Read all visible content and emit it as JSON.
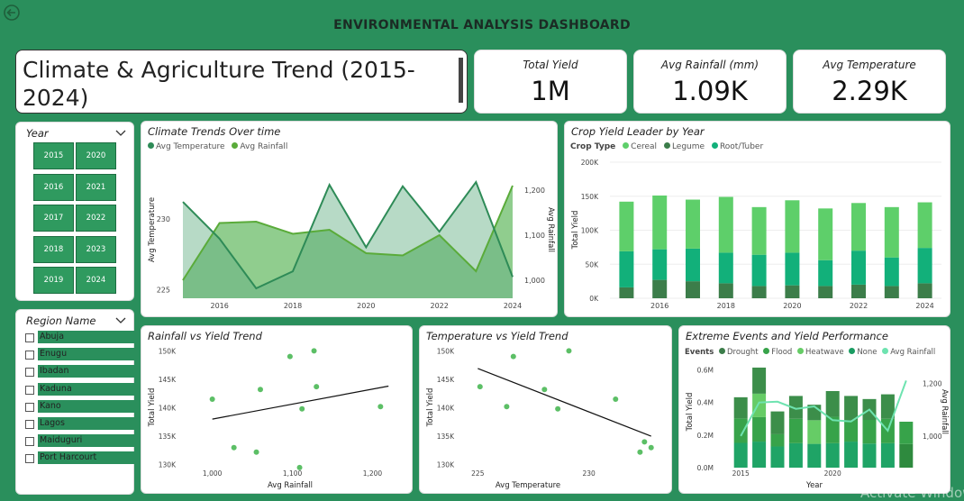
{
  "header": {
    "title": "ENVIRONMENTAL ANALYSIS DASHBOARD"
  },
  "report_title": "Climate & Agriculture Trend (2015-2024)",
  "kpis": [
    {
      "label": "Total Yield",
      "value": "1M"
    },
    {
      "label": "Avg Rainfall (mm)",
      "value": "1.09K"
    },
    {
      "label": "Avg Temperature",
      "value": "2.29K"
    }
  ],
  "year_slicer": {
    "label": "Year",
    "years": [
      "2015",
      "2020",
      "2016",
      "2021",
      "2017",
      "2022",
      "2018",
      "2023",
      "2019",
      "2024"
    ]
  },
  "region_slicer": {
    "label": "Region Name",
    "regions": [
      "Abuja",
      "Enugu",
      "Ibadan",
      "Kaduna",
      "Kano",
      "Lagos",
      "Maiduguri",
      "Port Harcourt"
    ]
  },
  "watermark": "Activate Windows",
  "colors": {
    "dark_green": "#2a8f5c",
    "temp": "#2e8b57",
    "rain": "#5aab3a",
    "cereal": "#5ecf6a",
    "legume": "#3c7d4a",
    "root": "#12b07a",
    "flood": "#37a34a",
    "heatwave": "#66cc66",
    "none": "#1a9c62",
    "avg_rain_line": "#6ee3b0"
  },
  "chart_data": [
    {
      "id": "climate",
      "type": "area",
      "title": "Climate Trends Over time",
      "legend": [
        "Avg Temperature",
        "Avg Rainfall"
      ],
      "x": [
        2015,
        2016,
        2017,
        2018,
        2019,
        2020,
        2021,
        2022,
        2023,
        2024
      ],
      "x_ticks": [
        "2016",
        "2018",
        "2020",
        "2022",
        "2024"
      ],
      "xlim": [
        2015,
        2024
      ],
      "ylabel": "Avg Temperature",
      "ylim": [
        224.4,
        233.3
      ],
      "y_ticks": [
        "225",
        "230"
      ],
      "y2label": "Avg Rainfall",
      "y2lim": [
        960,
        1240
      ],
      "y2_ticks": [
        "1,000",
        "1,100",
        "1,200"
      ],
      "series": [
        {
          "name": "Avg Temperature",
          "axis": "left",
          "values": [
            231.2,
            228.6,
            225.1,
            226.3,
            232.4,
            228.0,
            232.3,
            229.1,
            232.6,
            225.9
          ]
        },
        {
          "name": "Avg Rainfall",
          "axis": "right",
          "values": [
            1000,
            1127,
            1130,
            1103,
            1112,
            1060,
            1055,
            1100,
            1020,
            1210
          ]
        }
      ]
    },
    {
      "id": "crop",
      "type": "bar",
      "title": "Crop Yield Leader by Year",
      "legend_title": "Crop Type",
      "legend": [
        "Cereal",
        "Legume",
        "Root/Tuber"
      ],
      "categories": [
        "2015",
        "2016",
        "2017",
        "2018",
        "2019",
        "2020",
        "2021",
        "2022",
        "2023",
        "2024"
      ],
      "x_ticks": [
        "2016",
        "2018",
        "2020",
        "2022",
        "2024"
      ],
      "ylabel": "Total Yield",
      "ylim": [
        0,
        200000
      ],
      "y_ticks": [
        "0K",
        "50K",
        "100K",
        "150K",
        "200K"
      ],
      "series": [
        {
          "name": "Legume",
          "values": [
            16000,
            27000,
            25000,
            22000,
            18000,
            19000,
            18000,
            20000,
            18000,
            22000
          ]
        },
        {
          "name": "Root/Tuber",
          "values": [
            53000,
            45000,
            48000,
            45000,
            46000,
            48000,
            38000,
            50000,
            42000,
            52000
          ]
        },
        {
          "name": "Cereal",
          "values": [
            73000,
            79000,
            72000,
            82000,
            70000,
            77000,
            76000,
            70000,
            74000,
            67000
          ]
        }
      ]
    },
    {
      "id": "rain_yield",
      "type": "scatter",
      "title": "Rainfall vs Yield Trend",
      "xlabel": "Avg Rainfall",
      "ylabel": "Total Yield",
      "xlim": [
        970,
        1240
      ],
      "ylim": [
        129000,
        151000
      ],
      "x_ticks": [
        "1,000",
        "1,100",
        "1,200"
      ],
      "y_ticks": [
        "130K",
        "135K",
        "140K",
        "145K",
        "150K"
      ],
      "points": [
        [
          1000,
          141500
        ],
        [
          1027,
          133000
        ],
        [
          1055,
          132200
        ],
        [
          1060,
          143200
        ],
        [
          1097,
          149000
        ],
        [
          1109,
          129500
        ],
        [
          1112,
          139800
        ],
        [
          1127,
          150000
        ],
        [
          1130,
          143700
        ],
        [
          1210,
          140200
        ]
      ],
      "trend": [
        [
          1000,
          138000
        ],
        [
          1220,
          143800
        ]
      ]
    },
    {
      "id": "temp_yield",
      "type": "scatter",
      "title": "Temperature vs Yield Trend",
      "xlabel": "Avg Temperature",
      "ylabel": "Total Yield",
      "xlim": [
        224.5,
        233.5
      ],
      "ylim": [
        129000,
        151000
      ],
      "x_ticks": [
        "225",
        "230"
      ],
      "y_ticks": [
        "130K",
        "135K",
        "140K",
        "145K",
        "150K"
      ],
      "points": [
        [
          225.1,
          143700
        ],
        [
          226.3,
          140200
        ],
        [
          226.6,
          149000
        ],
        [
          228.0,
          143200
        ],
        [
          228.6,
          139800
        ],
        [
          229.1,
          150000
        ],
        [
          231.2,
          141500
        ],
        [
          232.3,
          132200
        ],
        [
          232.5,
          134000
        ],
        [
          232.8,
          133000
        ]
      ],
      "trend": [
        [
          225.0,
          146900
        ],
        [
          232.8,
          135000
        ]
      ]
    },
    {
      "id": "events",
      "type": "bar",
      "title": "Extreme Events and Yield Performance",
      "legend_title": "Events",
      "legend": [
        "Drought",
        "Flood",
        "Heatwave",
        "None",
        "Avg Rainfall"
      ],
      "categories": [
        "2015",
        "2016",
        "2017",
        "2018",
        "2019",
        "2020",
        "2021",
        "2022",
        "2023",
        "2024"
      ],
      "x_ticks": [
        "2015",
        "2020"
      ],
      "xlabel": "Year",
      "ylabel": "Total Yield",
      "y2label": "Avg Rainfall",
      "ylim": [
        0,
        680000
      ],
      "y_ticks": [
        "0.0M",
        "0.2M",
        "0.4M",
        "0.6M"
      ],
      "y2lim": [
        880,
        1300
      ],
      "y2_ticks": [
        "1,000",
        "1,200"
      ],
      "series": [
        {
          "name": "Drought",
          "values": [
            152000,
            160000,
            130000,
            150000,
            146000,
            150000,
            160000,
            148000,
            150000,
            0
          ]
        },
        {
          "name": "None",
          "values": [
            0,
            0,
            0,
            0,
            0,
            0,
            0,
            0,
            0,
            145000
          ]
        },
        {
          "name": "Flood",
          "values": [
            150000,
            150000,
            75000,
            150000,
            0,
            162000,
            130000,
            145000,
            150000,
            137000
          ]
        },
        {
          "name": "Heatwave",
          "values": [
            0,
            144000,
            0,
            0,
            145000,
            0,
            0,
            0,
            0,
            0
          ]
        },
        {
          "name": "Flood",
          "values": [
            130000,
            160000,
            140000,
            140000,
            95000,
            158000,
            150000,
            128000,
            150000,
            0
          ]
        }
      ],
      "line": {
        "name": "Avg Rainfall",
        "values": [
          1000,
          1127,
          1130,
          1103,
          1112,
          1060,
          1055,
          1100,
          1020,
          1210
        ]
      }
    }
  ]
}
